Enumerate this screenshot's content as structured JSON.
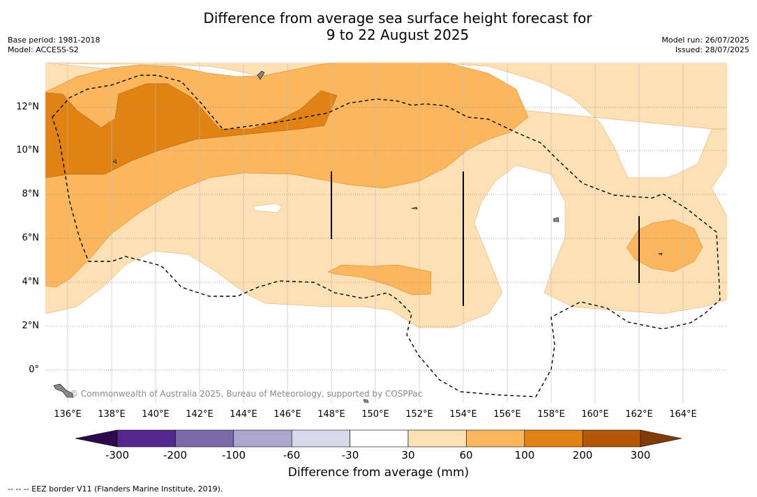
{
  "title_line1": "Difference from average sea surface height forecast for",
  "title_line2": "9 to 22 August 2025",
  "meta_left": [
    "Base period: 1981-2018",
    "Model: ACCESS-S2"
  ],
  "meta_right": [
    "Model run: 26/07/2025",
    "Issued: 28/07/2025"
  ],
  "lat_labels": [
    "12°N",
    "10°N",
    "8°N",
    "6°N",
    "4°N",
    "2°N",
    "0°"
  ],
  "lon_labels": [
    "136°E",
    "138°E",
    "140°E",
    "142°E",
    "144°E",
    "146°E",
    "148°E",
    "150°E",
    "152°E",
    "154°E",
    "156°E",
    "158°E",
    "160°E",
    "162°E",
    "164°E"
  ],
  "credit": "© Commonwealth of Australia 2025, Bureau of Meteorology, supported by COSPPac",
  "colorbar": {
    "labels": [
      "-300",
      "-200",
      "-100",
      "-60",
      "-30",
      "30",
      "60",
      "100",
      "200",
      "300"
    ],
    "colors": [
      "#2d0a4e",
      "#54278f",
      "#7b6aab",
      "#ada6cf",
      "#d9d9ec",
      "#ffffff",
      "#fde0b4",
      "#fbb65e",
      "#e08214",
      "#b35806",
      "#7f3b08"
    ],
    "title": "Difference from average (mm)"
  },
  "footnote": "-- -- -- EEZ border V11 (Flanders Marine Institute, 2019)."
}
